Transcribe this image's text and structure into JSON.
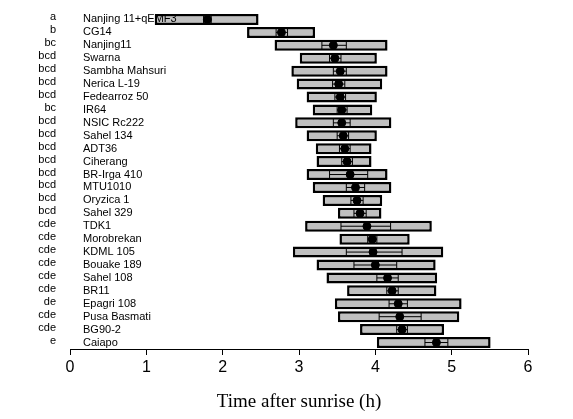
{
  "chart_data": {
    "type": "box",
    "orientation": "horizontal",
    "x_label": "Time after sunrise (h)",
    "xlim": [
      0,
      6
    ],
    "xticks": [
      0,
      1,
      2,
      3,
      4,
      5,
      6
    ],
    "grid": false,
    "color": "#c0c0c0",
    "categories": [
      "Nanjing 11+qEMF3",
      "CG14",
      "Nanjing11",
      "Swarna",
      "Sambha Mahsuri",
      "Nerica L-19",
      "Fedearroz 50",
      "IR64",
      "NSIC Rc222",
      "Sahel 134",
      "ADT36",
      "Ciherang",
      "BR-Irga 410",
      "MTU1010",
      "Oryzica 1",
      "Sahel 329",
      "TDK1",
      "Morobrekan",
      "KDML 105",
      "Bouake 189",
      "Sahel 108",
      "BR11",
      "Epagri 108",
      "Pusa Basmati",
      "BG90-2",
      "Caiapo"
    ],
    "letters": [
      "a",
      "b",
      "bc",
      "bcd",
      "bcd",
      "bcd",
      "bcd",
      "bc",
      "bcd",
      "bcd",
      "bcd",
      "bcd",
      "bcd",
      "bcd",
      "bcd",
      "bcd",
      "cde",
      "cde",
      "cde",
      "cde",
      "cde",
      "cde",
      "de",
      "cde",
      "cde",
      "e"
    ],
    "q1": [
      1.11,
      2.32,
      2.68,
      3.01,
      2.9,
      2.97,
      3.1,
      3.18,
      2.95,
      3.1,
      3.22,
      3.23,
      3.1,
      3.18,
      3.31,
      3.51,
      3.08,
      3.53,
      2.92,
      3.23,
      3.36,
      3.63,
      3.47,
      3.51,
      3.8,
      4.02
    ],
    "q3": [
      2.47,
      3.21,
      4.16,
      4.02,
      4.16,
      4.09,
      4.02,
      3.96,
      4.21,
      4.02,
      3.95,
      3.95,
      4.16,
      4.21,
      4.09,
      4.08,
      4.74,
      4.45,
      4.89,
      4.79,
      4.81,
      4.8,
      5.13,
      5.1,
      4.9,
      5.51
    ],
    "mean": [
      1.8,
      2.77,
      3.45,
      3.47,
      3.54,
      3.52,
      3.54,
      3.56,
      3.56,
      3.58,
      3.6,
      3.63,
      3.67,
      3.74,
      3.76,
      3.8,
      3.89,
      3.96,
      3.97,
      4.0,
      4.16,
      4.22,
      4.3,
      4.32,
      4.35,
      4.8
    ],
    "se_low": [
      1.75,
      2.7,
      3.3,
      3.4,
      3.45,
      3.44,
      3.47,
      3.5,
      3.45,
      3.5,
      3.53,
      3.56,
      3.4,
      3.62,
      3.68,
      3.72,
      3.55,
      3.9,
      3.62,
      3.72,
      4.02,
      4.15,
      4.18,
      4.05,
      4.28,
      4.65
    ],
    "se_high": [
      1.85,
      2.85,
      3.62,
      3.55,
      3.62,
      3.6,
      3.61,
      3.63,
      3.67,
      3.65,
      3.67,
      3.7,
      3.9,
      3.86,
      3.84,
      3.88,
      4.2,
      4.02,
      4.35,
      4.28,
      4.3,
      4.3,
      4.42,
      4.6,
      4.42,
      4.95
    ]
  }
}
